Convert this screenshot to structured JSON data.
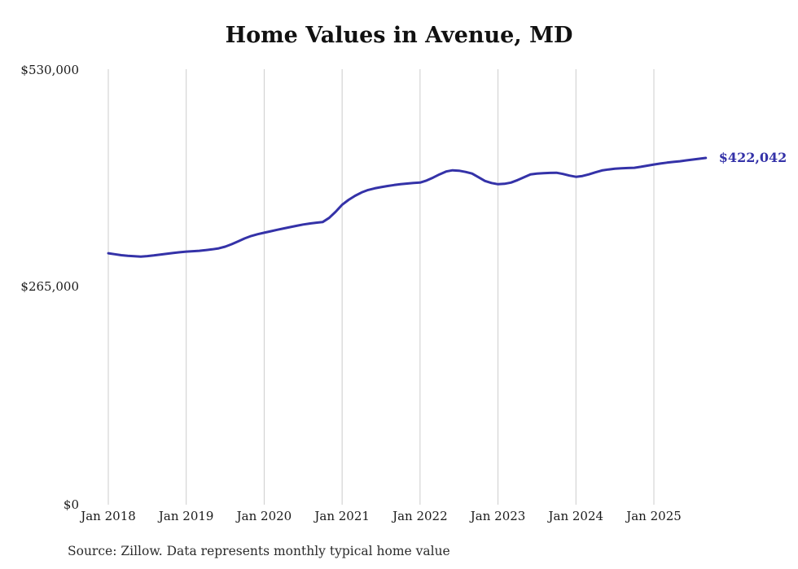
{
  "chart": {
    "title": "Home Values in Avenue, MD",
    "source": "Source: Zillow. Data represents monthly typical home value"
  },
  "annotations": {
    "final_value_label": "$422,042"
  },
  "chart_data": {
    "type": "line",
    "title": "Home Values in Avenue, MD",
    "xlabel": "",
    "ylabel": "",
    "ylim": [
      0,
      530000
    ],
    "grid": "vertical",
    "legend": "none",
    "line_color": "#3432a8",
    "gridline_color": "#cccccc",
    "final_value": 422042,
    "y_tick_labels": [
      "$530,000",
      "$265,000",
      "$0"
    ],
    "y_tick_values": [
      530000,
      265000,
      0
    ],
    "x_tick_labels": [
      "Jan 2018",
      "Jan 2019",
      "Jan 2020",
      "Jan 2021",
      "Jan 2022",
      "Jan 2023",
      "Jan 2024",
      "Jan 2025"
    ],
    "x_tick_indices": [
      0,
      12,
      24,
      36,
      48,
      60,
      72,
      84
    ],
    "months": [
      "2018-01",
      "2018-02",
      "2018-03",
      "2018-04",
      "2018-05",
      "2018-06",
      "2018-07",
      "2018-08",
      "2018-09",
      "2018-10",
      "2018-11",
      "2018-12",
      "2019-01",
      "2019-02",
      "2019-03",
      "2019-04",
      "2019-05",
      "2019-06",
      "2019-07",
      "2019-08",
      "2019-09",
      "2019-10",
      "2019-11",
      "2019-12",
      "2020-01",
      "2020-02",
      "2020-03",
      "2020-04",
      "2020-05",
      "2020-06",
      "2020-07",
      "2020-08",
      "2020-09",
      "2020-10",
      "2020-11",
      "2020-12",
      "2021-01",
      "2021-02",
      "2021-03",
      "2021-04",
      "2021-05",
      "2021-06",
      "2021-07",
      "2021-08",
      "2021-09",
      "2021-10",
      "2021-11",
      "2021-12",
      "2022-01",
      "2022-02",
      "2022-03",
      "2022-04",
      "2022-05",
      "2022-06",
      "2022-07",
      "2022-08",
      "2022-09",
      "2022-10",
      "2022-11",
      "2022-12",
      "2023-01",
      "2023-02",
      "2023-03",
      "2023-04",
      "2023-05",
      "2023-06",
      "2023-07",
      "2023-08",
      "2023-09",
      "2023-10",
      "2023-11",
      "2023-12",
      "2024-01",
      "2024-02",
      "2024-03",
      "2024-04",
      "2024-05",
      "2024-06",
      "2024-07",
      "2024-08",
      "2024-09",
      "2024-10",
      "2024-11",
      "2024-12",
      "2025-01",
      "2025-02",
      "2025-03",
      "2025-04",
      "2025-05",
      "2025-06",
      "2025-07",
      "2025-08",
      "2025-09"
    ],
    "values": [
      306000,
      304800,
      303600,
      302800,
      302300,
      302000,
      302500,
      303300,
      304300,
      305300,
      306300,
      307200,
      308000,
      308500,
      309000,
      309800,
      310800,
      312000,
      314000,
      317000,
      320500,
      324000,
      327000,
      329200,
      331000,
      332800,
      334500,
      336200,
      337800,
      339400,
      341000,
      342200,
      343200,
      344000,
      349000,
      356500,
      365000,
      371000,
      376000,
      380000,
      383000,
      385000,
      386500,
      387800,
      389000,
      390000,
      390800,
      391500,
      392000,
      394500,
      398000,
      402000,
      405500,
      407000,
      406500,
      405000,
      403000,
      398500,
      394000,
      391500,
      390000,
      390500,
      392000,
      395000,
      398500,
      402000,
      403000,
      403500,
      403800,
      404000,
      402500,
      400500,
      399000,
      400000,
      402000,
      404500,
      406800,
      408000,
      408800,
      409300,
      409700,
      410000,
      411200,
      412600,
      414000,
      415200,
      416300,
      417200,
      418000,
      419000,
      420000,
      421000,
      422042
    ],
    "source": "Source: Zillow. Data represents monthly typical home value"
  }
}
